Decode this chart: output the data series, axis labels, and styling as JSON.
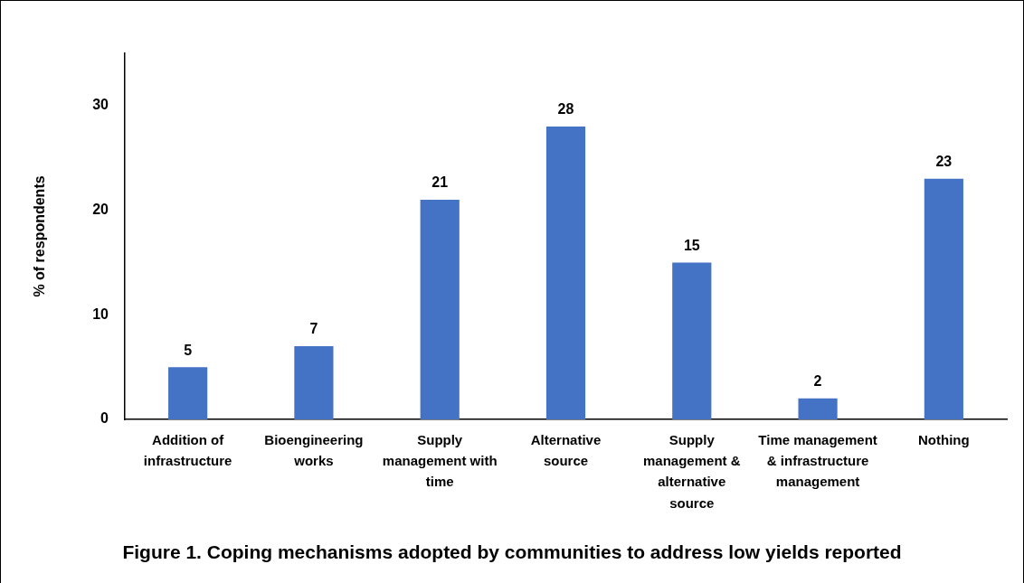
{
  "chart_data": {
    "type": "bar",
    "ylabel": "% of respondents",
    "categories": [
      "Addition of infrastructure",
      "Bioengineering works",
      "Supply management with time",
      "Alternative source",
      "Supply management & alternative source",
      "Time management & infrastructure management",
      "Nothing"
    ],
    "values": [
      5,
      7,
      21,
      28,
      15,
      2,
      23
    ],
    "color": "#4472c4",
    "ylim": [
      0,
      35
    ],
    "yticks": [
      0,
      10,
      20,
      30
    ],
    "grid": false,
    "legend": false,
    "data_labels": true,
    "annotations": [
      "Figure 1. Coping mechanisms adopted by communities to address low yields reported"
    ]
  }
}
